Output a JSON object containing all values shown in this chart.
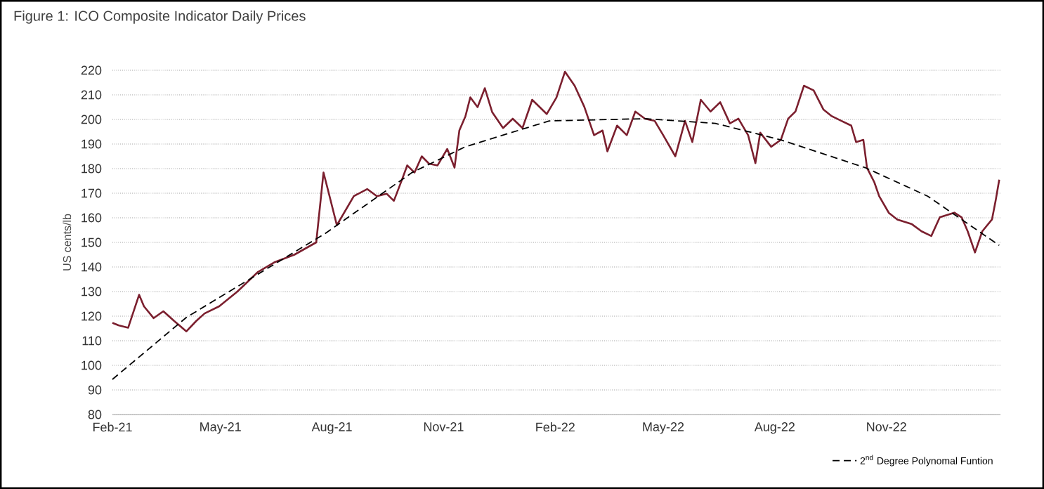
{
  "chart_data": {
    "type": "line",
    "title": "Figure 1: ICO Composite Indicator Daily Prices",
    "ylabel": "US cents/lb",
    "xlim": [
      "2021-02-01",
      "2023-02-03"
    ],
    "ylim": [
      80,
      220
    ],
    "xticks": [
      {
        "value": "2021-02-01",
        "label": "Feb-21"
      },
      {
        "value": "2021-05-01",
        "label": "May-21"
      },
      {
        "value": "2021-08-01",
        "label": "Aug-21"
      },
      {
        "value": "2021-11-01",
        "label": "Nov-21"
      },
      {
        "value": "2022-02-01",
        "label": "Feb-22"
      },
      {
        "value": "2022-05-01",
        "label": "May-22"
      },
      {
        "value": "2022-08-01",
        "label": "Aug-22"
      },
      {
        "value": "2022-11-01",
        "label": "Nov-22"
      }
    ],
    "yticks": [
      80,
      90,
      100,
      110,
      120,
      130,
      140,
      150,
      160,
      170,
      180,
      190,
      200,
      210,
      220
    ],
    "grid": "y",
    "legend": "bottom right",
    "series": [
      {
        "color": "#7b1f2e",
        "line_style": "solid",
        "x": [
          "2021-02-01",
          "2021-02-06",
          "2021-02-14",
          "2021-02-23",
          "2021-02-27",
          "2021-03-07",
          "2021-03-15",
          "2021-03-24",
          "2021-04-03",
          "2021-04-11",
          "2021-04-18",
          "2021-04-30",
          "2021-05-15",
          "2021-06-01",
          "2021-06-15",
          "2021-07-01",
          "2021-07-19",
          "2021-07-25",
          "2021-07-29",
          "2021-08-05",
          "2021-08-19",
          "2021-08-30",
          "2021-09-07",
          "2021-09-15",
          "2021-09-21",
          "2021-09-27",
          "2021-10-02",
          "2021-10-08",
          "2021-10-14",
          "2021-10-20",
          "2021-10-27",
          "2021-11-04",
          "2021-11-10",
          "2021-11-14",
          "2021-11-19",
          "2021-11-23",
          "2021-11-29",
          "2021-12-05",
          "2021-12-11",
          "2021-12-20",
          "2021-12-28",
          "2022-01-05",
          "2022-01-11",
          "2022-01-13",
          "2022-01-25",
          "2022-02-02",
          "2022-02-09",
          "2022-02-17",
          "2022-02-25",
          "2022-03-05",
          "2022-03-12",
          "2022-03-16",
          "2022-03-24",
          "2022-04-01",
          "2022-04-08",
          "2022-04-16",
          "2022-04-24",
          "2022-05-01",
          "2022-05-11",
          "2022-05-19",
          "2022-05-25",
          "2022-06-01",
          "2022-06-09",
          "2022-06-17",
          "2022-06-25",
          "2022-07-02",
          "2022-07-10",
          "2022-07-16",
          "2022-07-20",
          "2022-07-29",
          "2022-08-06",
          "2022-08-12",
          "2022-08-18",
          "2022-08-25",
          "2022-09-02",
          "2022-09-10",
          "2022-09-17",
          "2022-09-25",
          "2022-10-03",
          "2022-10-07",
          "2022-10-13",
          "2022-10-16",
          "2022-10-22",
          "2022-10-26",
          "2022-11-03",
          "2022-11-10",
          "2022-11-22",
          "2022-11-30",
          "2022-12-08",
          "2022-12-15",
          "2022-12-27",
          "2023-01-02",
          "2023-01-07",
          "2023-01-13",
          "2023-01-19",
          "2023-01-27",
          "2023-01-30",
          "2023-02-02"
        ],
        "values": [
          117.3,
          116.3,
          115.3,
          128.7,
          124,
          119.2,
          122,
          118,
          113.8,
          118,
          121.1,
          124,
          130,
          138,
          142,
          145,
          150,
          178.4,
          170.7,
          157,
          168.8,
          171.7,
          168.8,
          169.8,
          166.9,
          174.6,
          181.3,
          178.4,
          185,
          182,
          181.3,
          188,
          180.4,
          195.6,
          201.3,
          209,
          205,
          212.7,
          203,
          196.5,
          200.3,
          196.5,
          205,
          208,
          202.2,
          208.9,
          219.4,
          213.7,
          205.1,
          193.6,
          195.5,
          187,
          197.5,
          193.6,
          203.2,
          200.3,
          199.4,
          193.6,
          185,
          199.4,
          190.8,
          208,
          203.2,
          207,
          198.4,
          200.3,
          193.6,
          182.2,
          194.6,
          188.9,
          191.7,
          200.3,
          203.2,
          213.7,
          211.8,
          204.1,
          201.3,
          199.4,
          197.5,
          190.8,
          191.7,
          180.3,
          174.5,
          168.8,
          162,
          159.3,
          157.4,
          154.5,
          152.6,
          160.2,
          162.1,
          160.2,
          154.5,
          145.9,
          154.5,
          159.3,
          166.9,
          175.5
        ]
      },
      {
        "name": "2$^{nd}$ Degree Polynomal Funtion",
        "color": "#000000",
        "line_style": "dashed",
        "x": [
          "2021-02-01",
          "2021-04-03",
          "2021-07-26",
          "2021-10-06",
          "2021-11-19",
          "2022-01-27",
          "2022-04-16",
          "2022-06-13",
          "2022-08-06",
          "2022-10-15",
          "2022-12-05",
          "2023-02-02"
        ],
        "values": [
          94.3,
          119.5,
          153.5,
          178.4,
          188.9,
          199.4,
          200.3,
          198.4,
          191.7,
          180.3,
          168.8,
          148.8
        ]
      }
    ]
  }
}
